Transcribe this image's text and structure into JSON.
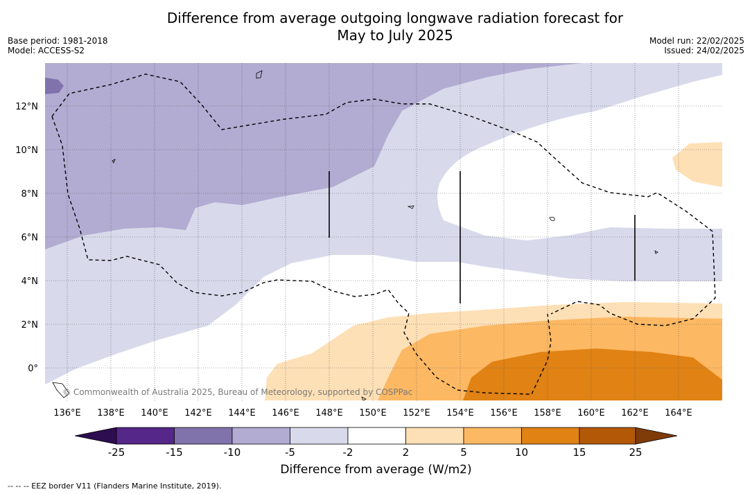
{
  "title": {
    "line1": "Difference from average outgoing longwave radiation forecast for",
    "line2": "May to July 2025"
  },
  "meta_left": {
    "base_period": "Base period: 1981-2018",
    "model": "Model: ACCESS-S2"
  },
  "meta_right": {
    "model_run": "Model run: 22/02/2025",
    "issued": "Issued: 24/02/2025"
  },
  "map": {
    "lon_labels": [
      "136°E",
      "138°E",
      "140°E",
      "142°E",
      "144°E",
      "146°E",
      "148°E",
      "150°E",
      "152°E",
      "154°E",
      "156°E",
      "158°E",
      "160°E",
      "162°E",
      "164°E"
    ],
    "lat_labels": [
      "12°N",
      "10°N",
      "8°N",
      "6°N",
      "4°N",
      "2°N",
      "0°"
    ],
    "credit": "© Commonwealth of Australia 2025, Bureau of Meteorology, supported by COSPPac"
  },
  "colorbar": {
    "labels": [
      "-25",
      "-15",
      "-10",
      "-5",
      "-2",
      "2",
      "5",
      "10",
      "15",
      "25"
    ],
    "colors": [
      "#2d0d4f",
      "#542788",
      "#8073ac",
      "#b2abd2",
      "#d8daeb",
      "#ffffff",
      "#fee0b6",
      "#fdb863",
      "#e08214",
      "#b35806",
      "#7f3b08"
    ],
    "label": "Difference from average (W/m2)"
  },
  "footnote": "--  --  -- EEZ border V11 (Flanders Marine Institute, 2019)."
}
